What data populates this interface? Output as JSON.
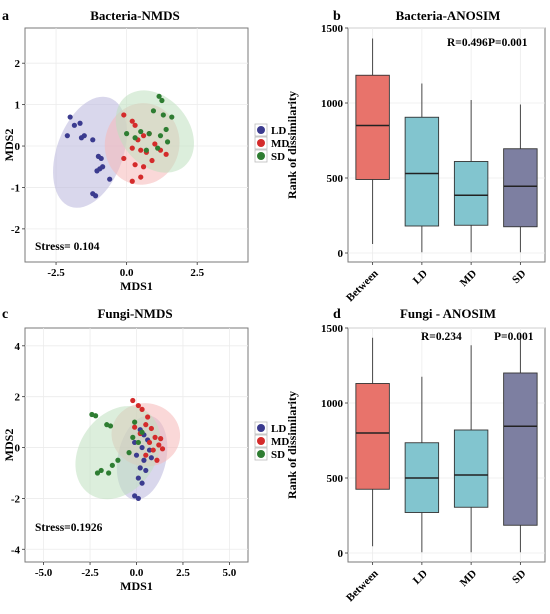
{
  "figure": {
    "panels": [
      "a",
      "b",
      "c",
      "d"
    ]
  },
  "chart_data": [
    {
      "type": "scatter",
      "panel_label": "a",
      "title": "Bacteria-NMDS",
      "xlabel": "MDS1",
      "ylabel": "MDS2",
      "xlim": [
        -3.6,
        4.3
      ],
      "ylim": [
        -2.8,
        2.85
      ],
      "xticks": [
        -2.5,
        0.0,
        2.5
      ],
      "xtick_labels": [
        "-2.5",
        "0.0",
        "2.5"
      ],
      "yticks": [
        -2,
        -1,
        0,
        1,
        2
      ],
      "ytick_labels": [
        "-2",
        "-1",
        "0",
        "1",
        "2"
      ],
      "annotation": "Stress= 0.104",
      "legend_position": "right",
      "grid": true,
      "series": [
        {
          "name": "LD",
          "color": "#3b3b8f",
          "ellipse": {
            "cx": -1.3,
            "cy": -0.15,
            "rx": 2.05,
            "ry": 0.8,
            "angle": -70,
            "fill": "#b9b6dc"
          },
          "x": [
            -2.0,
            -1.85,
            -1.65,
            -2.1,
            -1.6,
            -1.5,
            -1.2,
            -1.0,
            -0.9,
            -0.95,
            -1.05,
            -0.85,
            -1.2,
            -1.1,
            -0.6
          ],
          "y": [
            0.7,
            0.5,
            0.55,
            0.25,
            0.2,
            0.25,
            0.15,
            -0.25,
            -0.3,
            -0.55,
            -0.6,
            -0.5,
            -1.15,
            -1.2,
            -0.8
          ]
        },
        {
          "name": "MD",
          "color": "#d42b2b",
          "ellipse": {
            "cx": 0.55,
            "cy": 0.05,
            "rx": 1.45,
            "ry": 0.9,
            "angle": -80,
            "fill": "#f6b8b8"
          },
          "x": [
            -0.1,
            0.2,
            0.3,
            0.4,
            0.6,
            0.8,
            0.2,
            0.5,
            0.7,
            1.0,
            1.2,
            1.4,
            -0.1,
            0.3,
            0.6,
            0.9,
            0.5,
            0.2
          ],
          "y": [
            0.75,
            0.6,
            0.5,
            0.15,
            0.25,
            0.3,
            -0.05,
            -0.1,
            -0.15,
            0.05,
            -0.1,
            -0.2,
            -0.3,
            -0.45,
            -0.5,
            -0.35,
            -0.75,
            -0.85
          ]
        },
        {
          "name": "SD",
          "color": "#2e7d32",
          "ellipse": {
            "cx": 1.0,
            "cy": 0.35,
            "rx": 1.2,
            "ry": 1.1,
            "angle": -40,
            "fill": "#bfe0bf"
          },
          "x": [
            1.15,
            1.25,
            0.95,
            1.3,
            1.6,
            0.0,
            0.3,
            0.5,
            0.8,
            1.2,
            1.4,
            0.7,
            1.1,
            1.45
          ],
          "y": [
            1.2,
            1.1,
            0.85,
            0.75,
            0.7,
            0.3,
            0.2,
            0.35,
            0.3,
            0.25,
            0.4,
            -0.1,
            -0.05,
            0.1
          ]
        }
      ]
    },
    {
      "type": "boxplot",
      "panel_label": "b",
      "title": "Bacteria-ANOSIM",
      "ylabel": "Rank of dissimilarity",
      "categories": [
        "Between",
        "LD",
        "MD",
        "SD"
      ],
      "ylim": [
        -60,
        1500
      ],
      "yticks": [
        0,
        500,
        1000,
        1500
      ],
      "ytick_labels": [
        "0",
        "500",
        "1000",
        "1500"
      ],
      "annotations": [
        "R=0.496",
        "P=0.001"
      ],
      "grid": true,
      "boxes": [
        {
          "category": "Between",
          "color": "#e8736b",
          "whisker_low": 60,
          "q1": 490,
          "median": 850,
          "q3": 1185,
          "whisker_high": 1430
        },
        {
          "category": "LD",
          "color": "#82c5cf",
          "whisker_low": 5,
          "q1": 180,
          "median": 530,
          "q3": 905,
          "whisker_high": 1130
        },
        {
          "category": "MD",
          "color": "#82c5cf",
          "whisker_low": 5,
          "q1": 185,
          "median": 385,
          "q3": 610,
          "whisker_high": 1020
        },
        {
          "category": "SD",
          "color": "#7d7fa1",
          "whisker_low": 5,
          "q1": 175,
          "median": 445,
          "q3": 695,
          "whisker_high": 990
        }
      ]
    },
    {
      "type": "scatter",
      "panel_label": "c",
      "title": "Fungi-NMDS",
      "xlabel": "MDS1",
      "ylabel": "MDS2",
      "xlim": [
        -6.0,
        6.0
      ],
      "ylim": [
        -4.5,
        4.7
      ],
      "xticks": [
        -5.0,
        -2.5,
        0.0,
        2.5,
        5.0
      ],
      "xtick_labels": [
        "-5.0",
        "-2.5",
        "0.0",
        "2.5",
        "5.0"
      ],
      "yticks": [
        -4,
        -2,
        0,
        2,
        4
      ],
      "ytick_labels": [
        "-4",
        "-2",
        "0",
        "2",
        "4"
      ],
      "annotation": "Stress=0.1926",
      "legend_position": "right",
      "grid": true,
      "series": [
        {
          "name": "LD",
          "color": "#3b3b8f",
          "ellipse": {
            "cx": 0.3,
            "cy": -0.4,
            "rx": 2.3,
            "ry": 0.95,
            "angle": -78,
            "fill": "#b9b6dc"
          },
          "x": [
            0.2,
            0.4,
            0.6,
            -0.1,
            0.3,
            0.7,
            0.0,
            0.4,
            0.8,
            0.2,
            0.5,
            0.1,
            0.3,
            -0.1,
            0.1
          ],
          "y": [
            0.7,
            0.5,
            0.3,
            0.2,
            0.0,
            -0.1,
            -0.3,
            -0.5,
            -0.4,
            -0.8,
            -0.9,
            -1.2,
            -1.4,
            -1.9,
            -2.0
          ]
        },
        {
          "name": "MD",
          "color": "#d42b2b",
          "ellipse": {
            "cx": 0.5,
            "cy": 0.5,
            "rx": 1.7,
            "ry": 1.35,
            "angle": -82,
            "fill": "#f6b8b8"
          },
          "x": [
            -0.2,
            0.1,
            0.3,
            0.6,
            0.5,
            0.8,
            -0.1,
            0.2,
            1.0,
            1.3,
            1.2,
            0.7,
            0.9,
            1.4,
            0.5,
            1.1
          ],
          "y": [
            1.85,
            1.65,
            1.5,
            1.2,
            0.9,
            0.75,
            0.8,
            0.55,
            0.4,
            0.35,
            0.1,
            0.2,
            -0.1,
            -0.05,
            -0.3,
            -0.5
          ]
        },
        {
          "name": "SD",
          "color": "#2e7d32",
          "ellipse": {
            "cx": -1.0,
            "cy": -0.2,
            "rx": 2.7,
            "ry": 1.5,
            "angle": -55,
            "fill": "#bfe0bf"
          },
          "x": [
            -2.4,
            -2.2,
            -1.6,
            -1.4,
            -0.2,
            0.1,
            0.3,
            -0.4,
            -1.0,
            -1.3,
            -1.9,
            -2.1,
            -1.5,
            -0.1
          ],
          "y": [
            1.3,
            1.25,
            0.9,
            0.85,
            0.4,
            0.2,
            0.6,
            -0.2,
            -0.5,
            -0.7,
            -0.9,
            -1.0,
            -1.0,
            1.0
          ]
        }
      ]
    },
    {
      "type": "boxplot",
      "panel_label": "d",
      "title": "Fungi - ANOSIM",
      "ylabel": "Rank of dissimilarity",
      "categories": [
        "Between",
        "LD",
        "MD",
        "SD"
      ],
      "ylim": [
        -60,
        1500
      ],
      "yticks": [
        0,
        500,
        1000,
        1500
      ],
      "ytick_labels": [
        "0",
        "500",
        "1000",
        "1500"
      ],
      "annotations": [
        "R=0.234",
        "P=0.001"
      ],
      "grid": true,
      "boxes": [
        {
          "category": "Between",
          "color": "#e8736b",
          "whisker_low": 45,
          "q1": 425,
          "median": 800,
          "q3": 1130,
          "whisker_high": 1435
        },
        {
          "category": "LD",
          "color": "#82c5cf",
          "whisker_low": 5,
          "q1": 270,
          "median": 500,
          "q3": 735,
          "whisker_high": 1175
        },
        {
          "category": "MD",
          "color": "#82c5cf",
          "whisker_low": 5,
          "q1": 305,
          "median": 520,
          "q3": 820,
          "whisker_high": 1385
        },
        {
          "category": "SD",
          "color": "#7d7fa1",
          "whisker_low": 5,
          "q1": 185,
          "median": 845,
          "q3": 1200,
          "whisker_high": 1465
        }
      ]
    }
  ]
}
